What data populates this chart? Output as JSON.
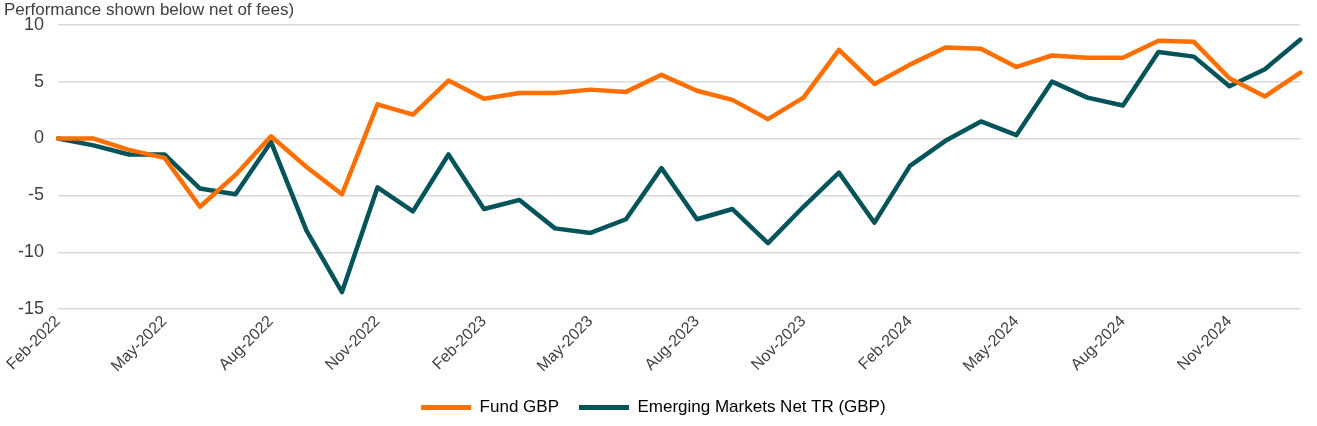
{
  "chart_data": {
    "type": "line",
    "subtitle": "Performance shown below net of fees)",
    "categories": [
      "Feb-2022",
      null,
      null,
      "May-2022",
      null,
      null,
      "Aug-2022",
      null,
      null,
      "Nov-2022",
      null,
      null,
      "Feb-2023",
      null,
      null,
      "May-2023",
      null,
      null,
      "Aug-2023",
      null,
      null,
      "Nov-2023",
      null,
      null,
      "Feb-2024",
      null,
      null,
      "May-2024",
      null,
      null,
      "Aug-2024",
      null,
      null,
      "Nov-2024",
      null,
      null
    ],
    "series": [
      {
        "name": "Fund GBP",
        "color": "#ff6f00",
        "values": [
          0,
          0,
          -1.0,
          -1.7,
          -6.0,
          -3.2,
          0.2,
          -2.5,
          -4.9,
          3.0,
          2.1,
          5.1,
          3.5,
          4.0,
          4.0,
          4.3,
          4.1,
          5.6,
          4.2,
          3.4,
          1.7,
          3.6,
          7.8,
          4.8,
          6.5,
          8.0,
          7.9,
          6.3,
          7.3,
          7.1,
          7.1,
          8.6,
          8.5,
          5.3,
          3.7,
          5.8
        ]
      },
      {
        "name": "Emerging Markets Net TR (GBP)",
        "color": "#04545a",
        "values": [
          0,
          -0.6,
          -1.4,
          -1.4,
          -4.4,
          -4.9,
          -0.3,
          -8.1,
          -13.5,
          -4.3,
          -6.4,
          -1.4,
          -6.2,
          -5.4,
          -7.9,
          -8.3,
          -7.1,
          -2.6,
          -7.1,
          -6.2,
          -9.2,
          -6.0,
          -3.0,
          -7.4,
          -2.4,
          -0.2,
          1.5,
          0.3,
          5.0,
          3.6,
          2.9,
          7.6,
          7.2,
          4.6,
          6.1,
          8.7
        ]
      }
    ],
    "ylim": [
      -15,
      10
    ],
    "yticks": [
      -15,
      -10,
      -5,
      0,
      5,
      10
    ],
    "grid": "y",
    "legend": "bottom",
    "marker": "none",
    "line_style": "solid"
  }
}
